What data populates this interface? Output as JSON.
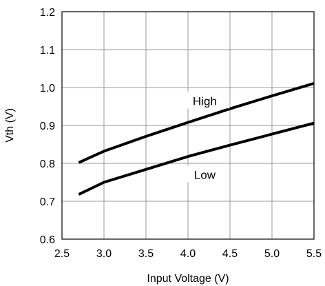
{
  "chart_data": {
    "type": "line",
    "xlabel": "Input Voltage (V)",
    "ylabel": "Vth (V)",
    "xlim": [
      2.5,
      5.5
    ],
    "ylim": [
      0.6,
      1.2
    ],
    "x_ticks": [
      "2.5",
      "3.0",
      "3.5",
      "4.0",
      "4.5",
      "5.0",
      "5.5"
    ],
    "y_ticks": [
      "0.6",
      "0.7",
      "0.8",
      "0.9",
      "1.0",
      "1.1",
      "1.2"
    ],
    "grid": true,
    "series": [
      {
        "name": "High",
        "x": [
          2.7,
          3.0,
          3.5,
          4.0,
          4.5,
          5.0,
          5.5
        ],
        "values": [
          0.802,
          0.832,
          0.871,
          0.908,
          0.944,
          0.978,
          1.011
        ],
        "color": "#000000",
        "label_at": [
          4.2,
          0.965
        ]
      },
      {
        "name": "Low",
        "x": [
          2.7,
          3.0,
          3.5,
          4.0,
          4.5,
          5.0,
          5.5
        ],
        "values": [
          0.718,
          0.75,
          0.784,
          0.818,
          0.848,
          0.877,
          0.906
        ],
        "color": "#000000",
        "label_at": [
          4.2,
          0.77
        ]
      }
    ]
  }
}
